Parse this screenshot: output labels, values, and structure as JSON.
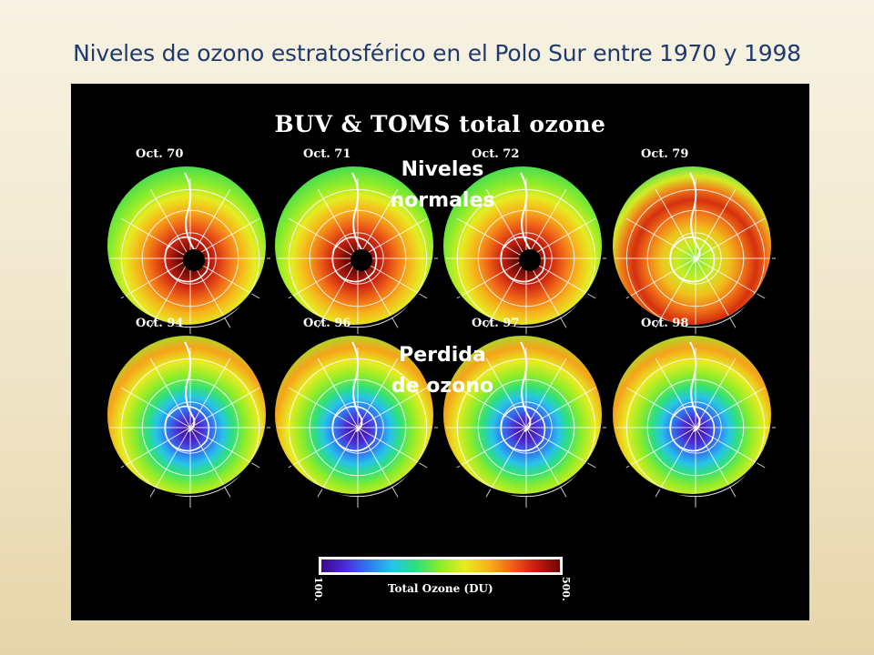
{
  "slide": {
    "title": "Niveles de ozono estratosférico en el Polo Sur entre 1970 y 1998"
  },
  "figure": {
    "heading": "BUV & TOMS total ozone",
    "maps": [
      {
        "label": "Oct. 70",
        "row": 0,
        "col": 0,
        "state": "normal",
        "hole": true
      },
      {
        "label": "Oct. 71",
        "row": 0,
        "col": 1,
        "state": "normal",
        "hole": true
      },
      {
        "label": "Oct. 72",
        "row": 0,
        "col": 2,
        "state": "normal",
        "hole": true
      },
      {
        "label": "Oct. 79",
        "row": 0,
        "col": 3,
        "state": "thinning",
        "hole": false
      },
      {
        "label": "Oct. 94",
        "row": 1,
        "col": 0,
        "state": "depleted",
        "hole": false
      },
      {
        "label": "Oct. 96",
        "row": 1,
        "col": 1,
        "state": "depleted",
        "hole": false
      },
      {
        "label": "Oct. 97",
        "row": 1,
        "col": 2,
        "state": "depleted",
        "hole": false
      },
      {
        "label": "Oct. 98",
        "row": 1,
        "col": 3,
        "state": "depleted",
        "hole": false
      }
    ],
    "overlay_top": {
      "line1": "Niveles",
      "line2": "normales"
    },
    "overlay_bottom": {
      "line1": "Perdida",
      "line2": "de ozono"
    },
    "colorbar": {
      "label": "Total Ozone (DU)",
      "min": "100.",
      "max": "500.",
      "colors": [
        "#3a0a8a",
        "#4b2bd6",
        "#2f7cf0",
        "#27c4e8",
        "#30e07a",
        "#8cec2a",
        "#e6ec22",
        "#f6b21a",
        "#f0601a",
        "#c81a10",
        "#6a0808"
      ]
    }
  }
}
